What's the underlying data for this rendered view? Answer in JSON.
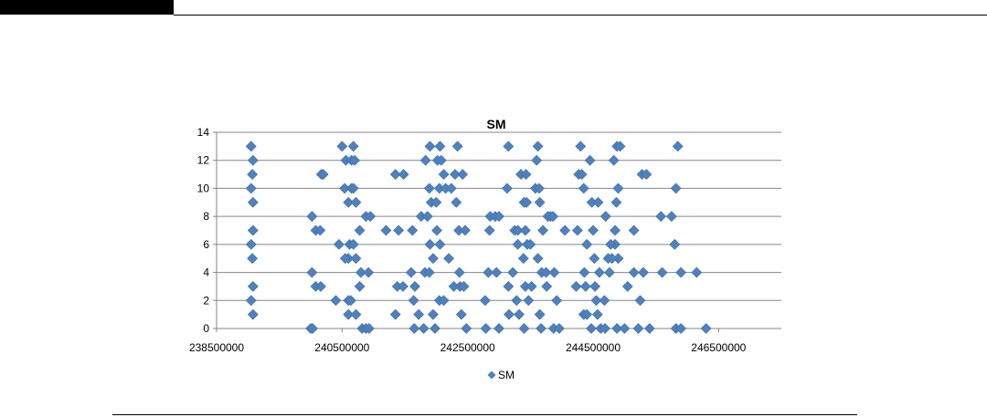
{
  "chart_data": {
    "type": "scatter",
    "title": "SM",
    "xlabel": "",
    "ylabel": "",
    "xlim": [
      238500000,
      247500000
    ],
    "ylim": [
      0,
      14
    ],
    "x_ticks": [
      238500000,
      240500000,
      242500000,
      244500000,
      246500000
    ],
    "y_ticks": [
      0,
      2,
      4,
      6,
      8,
      10,
      12,
      14
    ],
    "grid": "horizontal",
    "legend_position": "bottom",
    "marker_color": "#4F81BD",
    "marker": "diamond",
    "series": [
      {
        "name": "SM",
        "points": [
          [
            239050000,
            13
          ],
          [
            239080000,
            12
          ],
          [
            239070000,
            11
          ],
          [
            239050000,
            10
          ],
          [
            239080000,
            9
          ],
          [
            239080000,
            7
          ],
          [
            239050000,
            6
          ],
          [
            239070000,
            5
          ],
          [
            239080000,
            3
          ],
          [
            239050000,
            2
          ],
          [
            239080000,
            1
          ],
          [
            240020000,
            8
          ],
          [
            240080000,
            7
          ],
          [
            240150000,
            7
          ],
          [
            240020000,
            4
          ],
          [
            240080000,
            3
          ],
          [
            240160000,
            3
          ],
          [
            240000000,
            0
          ],
          [
            240030000,
            0
          ],
          [
            240170000,
            11
          ],
          [
            240200000,
            11
          ],
          [
            240450000,
            6
          ],
          [
            240400000,
            2
          ],
          [
            240500000,
            13
          ],
          [
            240560000,
            12
          ],
          [
            240540000,
            10
          ],
          [
            240600000,
            9
          ],
          [
            240650000,
            10
          ],
          [
            240620000,
            6
          ],
          [
            240600000,
            5
          ],
          [
            240550000,
            5
          ],
          [
            240600000,
            2
          ],
          [
            240640000,
            2
          ],
          [
            240600000,
            1
          ],
          [
            240680000,
            13
          ],
          [
            240650000,
            12
          ],
          [
            240700000,
            12
          ],
          [
            240680000,
            10
          ],
          [
            240720000,
            9
          ],
          [
            240780000,
            7
          ],
          [
            240680000,
            6
          ],
          [
            240720000,
            5
          ],
          [
            240800000,
            4
          ],
          [
            240780000,
            3
          ],
          [
            240720000,
            1
          ],
          [
            240820000,
            0
          ],
          [
            240880000,
            8
          ],
          [
            240950000,
            8
          ],
          [
            240920000,
            4
          ],
          [
            240880000,
            0
          ],
          [
            240930000,
            0
          ],
          [
            241200000,
            7
          ],
          [
            241350000,
            11
          ],
          [
            241480000,
            11
          ],
          [
            241400000,
            7
          ],
          [
            241380000,
            3
          ],
          [
            241470000,
            3
          ],
          [
            241350000,
            1
          ],
          [
            241620000,
            7
          ],
          [
            241600000,
            4
          ],
          [
            241660000,
            3
          ],
          [
            241640000,
            2
          ],
          [
            241650000,
            0
          ],
          [
            241760000,
            8
          ],
          [
            241720000,
            1
          ],
          [
            241800000,
            0
          ],
          [
            241830000,
            12
          ],
          [
            241900000,
            13
          ],
          [
            241890000,
            10
          ],
          [
            241920000,
            9
          ],
          [
            241860000,
            8
          ],
          [
            241820000,
            4
          ],
          [
            241900000,
            6
          ],
          [
            241890000,
            4
          ],
          [
            241950000,
            5
          ],
          [
            242000000,
            9
          ],
          [
            242060000,
            6
          ],
          [
            242010000,
            7
          ],
          [
            241950000,
            1
          ],
          [
            241980000,
            0
          ],
          [
            242050000,
            2
          ],
          [
            242120000,
            2
          ],
          [
            242020000,
            12
          ],
          [
            242060000,
            13
          ],
          [
            242050000,
            10
          ],
          [
            242080000,
            12
          ],
          [
            242120000,
            11
          ],
          [
            242150000,
            10
          ],
          [
            242200000,
            5
          ],
          [
            242280000,
            3
          ],
          [
            242240000,
            10
          ],
          [
            242300000,
            11
          ],
          [
            242340000,
            13
          ],
          [
            242320000,
            9
          ],
          [
            242360000,
            7
          ],
          [
            242370000,
            4
          ],
          [
            242380000,
            3
          ],
          [
            242400000,
            1
          ],
          [
            242420000,
            11
          ],
          [
            242460000,
            7
          ],
          [
            242440000,
            3
          ],
          [
            242480000,
            0
          ],
          [
            242780000,
            2
          ],
          [
            242790000,
            0
          ],
          [
            242830000,
            4
          ],
          [
            242850000,
            7
          ],
          [
            242860000,
            8
          ],
          [
            242940000,
            8
          ],
          [
            243000000,
            8
          ],
          [
            242960000,
            4
          ],
          [
            243000000,
            0
          ],
          [
            243150000,
            13
          ],
          [
            243130000,
            10
          ],
          [
            243150000,
            3
          ],
          [
            243160000,
            1
          ],
          [
            243220000,
            4
          ],
          [
            243300000,
            6
          ],
          [
            243250000,
            7
          ],
          [
            243280000,
            2
          ],
          [
            243300000,
            7
          ],
          [
            243320000,
            1
          ],
          [
            243350000,
            11
          ],
          [
            243400000,
            9
          ],
          [
            243390000,
            5
          ],
          [
            243420000,
            3
          ],
          [
            243400000,
            0
          ],
          [
            243430000,
            11
          ],
          [
            243440000,
            9
          ],
          [
            243420000,
            7
          ],
          [
            243450000,
            6
          ],
          [
            243470000,
            2
          ],
          [
            243500000,
            6
          ],
          [
            243520000,
            3
          ],
          [
            243620000,
            13
          ],
          [
            243580000,
            10
          ],
          [
            243600000,
            12
          ],
          [
            243640000,
            10
          ],
          [
            243650000,
            9
          ],
          [
            243620000,
            5
          ],
          [
            243680000,
            4
          ],
          [
            243700000,
            7
          ],
          [
            243650000,
            1
          ],
          [
            243670000,
            0
          ],
          [
            243780000,
            8
          ],
          [
            243750000,
            4
          ],
          [
            243760000,
            3
          ],
          [
            243820000,
            8
          ],
          [
            243860000,
            8
          ],
          [
            243880000,
            4
          ],
          [
            243920000,
            2
          ],
          [
            243870000,
            0
          ],
          [
            243960000,
            0
          ],
          [
            244050000,
            7
          ],
          [
            244250000,
            7
          ],
          [
            244230000,
            3
          ],
          [
            244300000,
            13
          ],
          [
            244270000,
            11
          ],
          [
            244320000,
            11
          ],
          [
            244350000,
            10
          ],
          [
            244400000,
            6
          ],
          [
            244360000,
            4
          ],
          [
            244380000,
            3
          ],
          [
            244350000,
            1
          ],
          [
            244400000,
            1
          ],
          [
            244450000,
            12
          ],
          [
            244480000,
            9
          ],
          [
            244500000,
            7
          ],
          [
            244520000,
            5
          ],
          [
            244530000,
            3
          ],
          [
            244550000,
            2
          ],
          [
            244470000,
            0
          ],
          [
            244580000,
            9
          ],
          [
            244600000,
            4
          ],
          [
            244570000,
            1
          ],
          [
            244620000,
            0
          ],
          [
            244680000,
            2
          ],
          [
            244700000,
            8
          ],
          [
            244740000,
            5
          ],
          [
            244760000,
            4
          ],
          [
            244880000,
            13
          ],
          [
            244830000,
            12
          ],
          [
            244900000,
            10
          ],
          [
            244870000,
            9
          ],
          [
            244850000,
            7
          ],
          [
            244850000,
            6
          ],
          [
            244900000,
            5
          ],
          [
            244930000,
            13
          ],
          [
            244880000,
            0
          ],
          [
            245000000,
            0
          ],
          [
            245050000,
            3
          ],
          [
            245150000,
            7
          ],
          [
            245150000,
            4
          ],
          [
            245280000,
            11
          ],
          [
            245350000,
            11
          ],
          [
            245250000,
            2
          ],
          [
            245220000,
            0
          ],
          [
            245400000,
            0
          ],
          [
            245300000,
            4
          ],
          [
            245580000,
            8
          ],
          [
            245600000,
            4
          ],
          [
            245750000,
            8
          ],
          [
            245850000,
            13
          ],
          [
            245800000,
            6
          ],
          [
            245820000,
            10
          ],
          [
            245820000,
            0
          ],
          [
            245900000,
            0
          ],
          [
            245900000,
            4
          ],
          [
            246150000,
            4
          ],
          [
            246300000,
            0
          ],
          [
            244690000,
            0
          ],
          [
            244800000,
            5
          ],
          [
            244780000,
            6
          ]
        ]
      }
    ]
  }
}
